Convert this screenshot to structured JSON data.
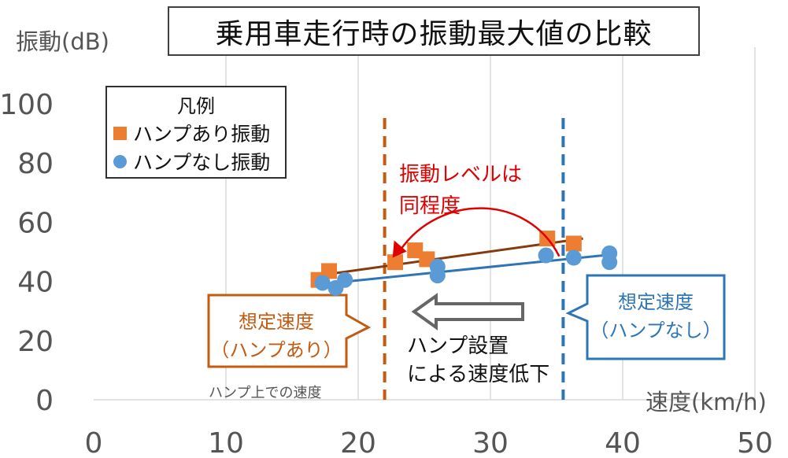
{
  "chart_data": {
    "type": "scatter",
    "title": "乗用車走行時の振動最大値の比較",
    "xlabel": "速度(km/h)",
    "ylabel": "振動(dB)",
    "xlim": [
      0,
      50
    ],
    "ylim": [
      0,
      110
    ],
    "x_ticks": [
      "0",
      "10",
      "20",
      "30",
      "40",
      "50"
    ],
    "y_ticks": [
      "0",
      "20",
      "40",
      "60",
      "80",
      "100"
    ],
    "grid": "vertical",
    "legend": {
      "title": "凡例",
      "position": "top-left"
    },
    "series": [
      {
        "name": "ハンプあり振動",
        "marker": "square",
        "color": "#ED7D31",
        "points": [
          [
            17,
            40.5
          ],
          [
            17.8,
            43.5
          ],
          [
            22.8,
            46.5
          ],
          [
            24.3,
            50.5
          ],
          [
            25.2,
            47.5
          ],
          [
            34.3,
            54.5
          ],
          [
            36.3,
            52.8
          ]
        ],
        "trendline": {
          "color": "#843C0C",
          "from": [
            17,
            42
          ],
          "to": [
            37,
            54.5
          ]
        }
      },
      {
        "name": "ハンプなし振動",
        "marker": "circle",
        "color": "#5B9BD5",
        "points": [
          [
            17.3,
            39.5
          ],
          [
            18.3,
            37.8
          ],
          [
            19,
            40.5
          ],
          [
            26,
            45
          ],
          [
            26,
            42
          ],
          [
            34.2,
            48.8
          ],
          [
            36.3,
            48
          ],
          [
            39,
            49.5
          ],
          [
            39,
            46.5
          ]
        ],
        "trendline": {
          "color": "#2E75B6",
          "from": [
            17,
            39
          ],
          "to": [
            39,
            49
          ]
        }
      }
    ],
    "annotations": {
      "hump_speed_label": "ハンプ上での速度",
      "red_note": [
        "振動レベルは",
        "同程度"
      ],
      "arrow_text": [
        "ハンプ設置",
        "による速度低下"
      ],
      "callout_hump": [
        "想定速度",
        "（ハンプあり）"
      ],
      "callout_nohump": [
        "想定速度",
        "（ハンプなし）"
      ],
      "vline_hump_x": 22,
      "vline_nohump_x": 35.5,
      "vline_hump_color": "#C55A11",
      "vline_nohump_color": "#2E75B6",
      "red_color": "#E00000"
    }
  }
}
